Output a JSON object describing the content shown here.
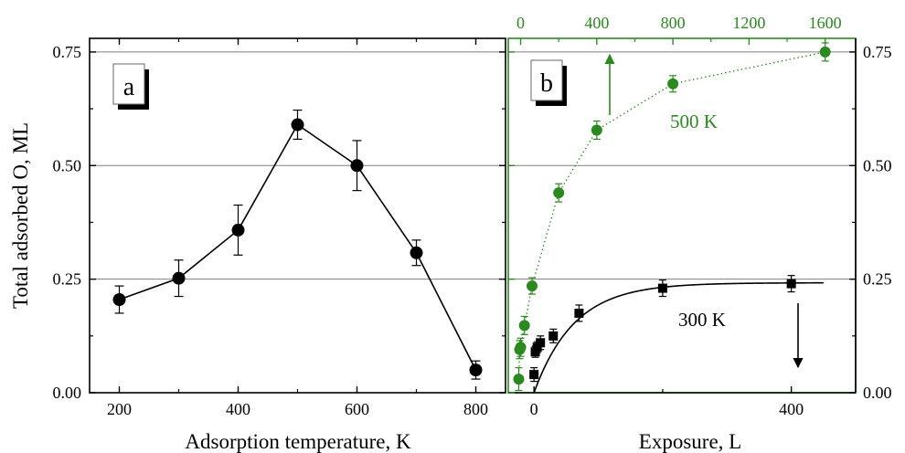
{
  "colors": {
    "black": "#000000",
    "green": "#2a8a1f",
    "grid": "#808080"
  },
  "chart_data": [
    {
      "panel": "a",
      "type": "line",
      "xlabel": "Adsorption temperature, K",
      "ylabel": "Total adsorbed O, ML",
      "xlim": [
        150,
        850
      ],
      "ylim": [
        0,
        0.78
      ],
      "x_ticks": [
        200,
        400,
        600,
        800
      ],
      "x_tick_labels": [
        "200",
        "400",
        "600",
        "800"
      ],
      "y_ticks": [
        0,
        0.25,
        0.5,
        0.75
      ],
      "y_tick_labels": [
        "0.00",
        "0.25",
        "0.50",
        "0.75"
      ],
      "grid": "horizontal at 0.25, 0.50, 0.75",
      "series": [
        {
          "marker": "circle",
          "color": "#000000",
          "x": [
            200,
            300,
            400,
            500,
            600,
            700,
            800
          ],
          "y": [
            0.205,
            0.252,
            0.358,
            0.59,
            0.5,
            0.308,
            0.05
          ],
          "err": [
            0.03,
            0.04,
            0.055,
            0.032,
            0.055,
            0.028,
            0.02
          ]
        }
      ]
    },
    {
      "panel": "b",
      "type": "line",
      "xlabel": "Exposure, L",
      "x_ticks": [
        0,
        400
      ],
      "x_tick_labels": [
        "0",
        "400"
      ],
      "xlim_bottom": [
        -40,
        500
      ],
      "top_axis_ticks": [
        0,
        400,
        800,
        1200,
        1600
      ],
      "top_axis_tick_labels": [
        "0",
        "400",
        "800",
        "1200",
        "1600"
      ],
      "xlim_top": [
        -65,
        1760
      ],
      "ylim": [
        0,
        0.78
      ],
      "y_ticks": [
        0,
        0.25,
        0.5,
        0.75
      ],
      "y_tick_labels": [
        "0.00",
        "0.25",
        "0.50",
        "0.75"
      ],
      "grid": "horizontal at 0.25, 0.50, 0.75",
      "series": [
        {
          "name": "300 K",
          "axis": "bottom",
          "marker": "square",
          "color": "#000000",
          "x": [
            0,
            2,
            5,
            10,
            30,
            70,
            200,
            400
          ],
          "y": [
            0.04,
            0.09,
            0.1,
            0.11,
            0.125,
            0.175,
            0.23,
            0.24
          ],
          "err": [
            0.015,
            0.012,
            0.012,
            0.015,
            0.015,
            0.018,
            0.018,
            0.018
          ],
          "fit": "saturation curve"
        },
        {
          "name": "500 K",
          "axis": "top",
          "marker": "circle",
          "color": "#2a8a1f",
          "x": [
            -10,
            -5,
            0,
            20,
            60,
            200,
            400,
            800,
            1600
          ],
          "y": [
            0.03,
            0.095,
            0.1,
            0.148,
            0.235,
            0.44,
            0.578,
            0.68,
            0.75
          ],
          "err": [
            0.025,
            0.02,
            0.02,
            0.02,
            0.018,
            0.02,
            0.02,
            0.018,
            0.02
          ]
        }
      ]
    }
  ]
}
